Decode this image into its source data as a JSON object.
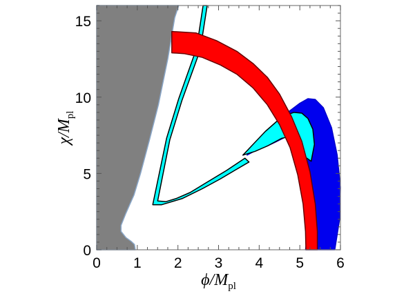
{
  "chart_data": {
    "type": "area",
    "xlabel": {
      "main": "ϕ/M",
      "sub": "pl"
    },
    "ylabel": {
      "main": "χ/M",
      "sub": "pl"
    },
    "xlim": [
      0,
      6
    ],
    "ylim": [
      0,
      16
    ],
    "xticks": [
      "0",
      "1",
      "2",
      "3",
      "4",
      "5",
      "6"
    ],
    "yticks": [
      "0",
      "5",
      "10",
      "15"
    ],
    "x_minor_step": 0.25,
    "y_minor_step": 0.5,
    "grid": false,
    "regions": [
      {
        "color": "#808080",
        "edge": "#8aa7c9",
        "points": [
          [
            0,
            0
          ],
          [
            0.95,
            0
          ],
          [
            0.93,
            0.35
          ],
          [
            0.85,
            0.55
          ],
          [
            0.72,
            0.8
          ],
          [
            0.6,
            1.2
          ],
          [
            0.6,
            1.6
          ],
          [
            0.72,
            2.4
          ],
          [
            0.92,
            3.6
          ],
          [
            1.08,
            5.0
          ],
          [
            1.3,
            7.2
          ],
          [
            1.52,
            9.5
          ],
          [
            1.75,
            12.5
          ],
          [
            1.92,
            15.2
          ],
          [
            2.02,
            16.0
          ],
          [
            0,
            16.0
          ]
        ]
      },
      {
        "color": "#0000ee",
        "edge": "#0000cc",
        "points": [
          [
            4.05,
            7.2
          ],
          [
            4.45,
            8.3
          ],
          [
            4.75,
            9.1
          ],
          [
            5.0,
            9.6
          ],
          [
            5.2,
            9.9
          ],
          [
            5.38,
            9.85
          ],
          [
            5.58,
            9.3
          ],
          [
            5.78,
            8.0
          ],
          [
            5.92,
            6.2
          ],
          [
            6.0,
            4.1
          ],
          [
            5.98,
            2.0
          ],
          [
            5.86,
            0.0
          ],
          [
            5.14,
            0.0
          ],
          [
            5.22,
            1.5
          ],
          [
            5.24,
            3.2
          ],
          [
            5.2,
            4.8
          ],
          [
            5.12,
            6.1
          ],
          [
            5.0,
            7.0
          ],
          [
            4.9,
            7.35
          ],
          [
            4.8,
            7.45
          ],
          [
            4.62,
            7.35
          ],
          [
            4.4,
            7.05
          ],
          [
            4.2,
            6.8
          ],
          [
            3.95,
            6.55
          ],
          [
            3.7,
            6.2
          ],
          [
            4.0,
            6.85
          ],
          [
            3.6,
            6.2
          ]
        ]
      },
      {
        "color": "#00ffff",
        "edge": "#000000",
        "points": [
          [
            3.6,
            6.2
          ],
          [
            3.9,
            7.05
          ],
          [
            4.15,
            7.75
          ],
          [
            4.45,
            8.45
          ],
          [
            4.65,
            8.8
          ],
          [
            4.85,
            9.0
          ],
          [
            5.05,
            8.95
          ],
          [
            5.2,
            8.6
          ],
          [
            5.32,
            7.9
          ],
          [
            5.36,
            6.9
          ],
          [
            5.28,
            5.8
          ],
          [
            5.12,
            6.1
          ],
          [
            5.0,
            7.0
          ],
          [
            4.8,
            7.45
          ],
          [
            4.55,
            7.3
          ],
          [
            4.2,
            6.8
          ],
          [
            3.9,
            6.45
          ]
        ]
      },
      {
        "color": "#00ffff",
        "edge": "#000000",
        "points": [
          [
            1.38,
            2.95
          ],
          [
            1.6,
            2.95
          ],
          [
            2.1,
            3.35
          ],
          [
            2.6,
            4.0
          ],
          [
            3.05,
            4.65
          ],
          [
            3.4,
            5.2
          ],
          [
            3.75,
            5.75
          ],
          [
            3.65,
            6.0
          ],
          [
            3.2,
            5.2
          ],
          [
            2.7,
            4.4
          ],
          [
            2.3,
            3.75
          ],
          [
            1.95,
            3.35
          ],
          [
            1.7,
            3.15
          ],
          [
            1.5,
            3.2
          ],
          [
            1.8,
            7.2
          ],
          [
            2.1,
            9.8
          ],
          [
            2.55,
            13.1
          ],
          [
            2.72,
            16.0
          ],
          [
            2.62,
            16.0
          ],
          [
            2.46,
            13.2
          ],
          [
            2.02,
            9.9
          ],
          [
            1.72,
            7.3
          ]
        ]
      },
      {
        "color": "#ff0000",
        "edge": "#660000",
        "points": [
          [
            1.85,
            14.3
          ],
          [
            2.45,
            14.2
          ],
          [
            2.95,
            13.7
          ],
          [
            3.45,
            13.0
          ],
          [
            3.85,
            12.2
          ],
          [
            4.2,
            11.3
          ],
          [
            4.5,
            10.2
          ],
          [
            4.8,
            8.7
          ],
          [
            5.05,
            7.1
          ],
          [
            5.25,
            5.1
          ],
          [
            5.38,
            3.0
          ],
          [
            5.43,
            1.2
          ],
          [
            5.43,
            0.0
          ],
          [
            5.15,
            0.0
          ],
          [
            5.14,
            1.2
          ],
          [
            5.08,
            3.0
          ],
          [
            4.95,
            4.9
          ],
          [
            4.76,
            6.7
          ],
          [
            4.5,
            8.2
          ],
          [
            4.2,
            9.5
          ],
          [
            3.85,
            10.6
          ],
          [
            3.45,
            11.5
          ],
          [
            3.05,
            12.1
          ],
          [
            2.6,
            12.6
          ],
          [
            2.15,
            12.85
          ],
          [
            1.85,
            12.9
          ]
        ]
      }
    ]
  }
}
